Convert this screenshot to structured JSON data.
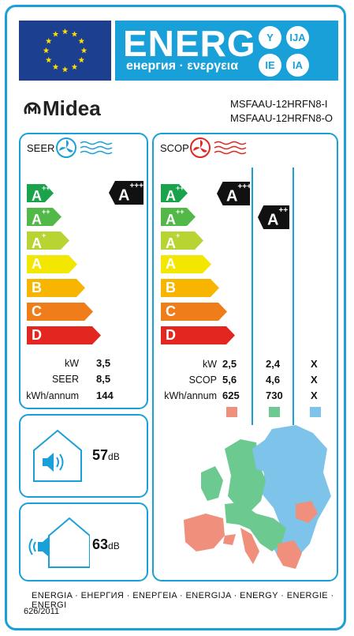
{
  "header": {
    "energy_word": "ENERG",
    "energy_subtitle": "енергия · ενεργεια",
    "circle_labels": [
      "Y",
      "IJA",
      "IE",
      "IA"
    ]
  },
  "brand": {
    "name": "Midea"
  },
  "model": {
    "indoor": "MSFAAU-12HRFN8-I",
    "outdoor": "MSFAAU-12HRFN8-O"
  },
  "seer": {
    "label": "SEER",
    "classes": [
      "A+++",
      "A++",
      "A+",
      "A",
      "B",
      "C",
      "D"
    ],
    "class_colors": [
      "#1aa34a",
      "#52b848",
      "#b7d433",
      "#f3e600",
      "#f8b500",
      "#ef7d1a",
      "#e3261f"
    ],
    "rating": "A+++",
    "rating_class_index": 0,
    "rows": [
      {
        "label": "kW",
        "value": "3,5"
      },
      {
        "label": "SEER",
        "value": "8,5"
      },
      {
        "label": "kWh/annum",
        "value": "144"
      }
    ]
  },
  "scop": {
    "label": "SCOP",
    "ratings": [
      {
        "text": "A+++",
        "class_index": 0
      },
      {
        "text": "A++",
        "class_index": 1
      }
    ],
    "row_labels": [
      "kW",
      "SCOP",
      "kWh/annum"
    ],
    "columns": [
      {
        "zone_color": "#f08f7b",
        "values": [
          "2,5",
          "5,6",
          "625"
        ]
      },
      {
        "zone_color": "#6cc98f",
        "values": [
          "2,4",
          "4,6",
          "730"
        ]
      },
      {
        "zone_color": "#7ec3ea",
        "values": [
          "X",
          "X",
          "X"
        ]
      }
    ]
  },
  "noise": {
    "indoor": {
      "value": "57",
      "unit": "dB"
    },
    "outdoor": {
      "value": "63",
      "unit": "dB"
    }
  },
  "footer": {
    "languages": "ENERGIA · ЕНЕРГИЯ · ΕΝΕΡΓΕΙΑ · ENERGIJA · ENERGY · ENERGIE · ENERGI",
    "regulation": "626/2011"
  },
  "colors": {
    "accent": "#1aa0d8",
    "eu_blue": "#1d3f8f",
    "star": "#ffdd00"
  }
}
